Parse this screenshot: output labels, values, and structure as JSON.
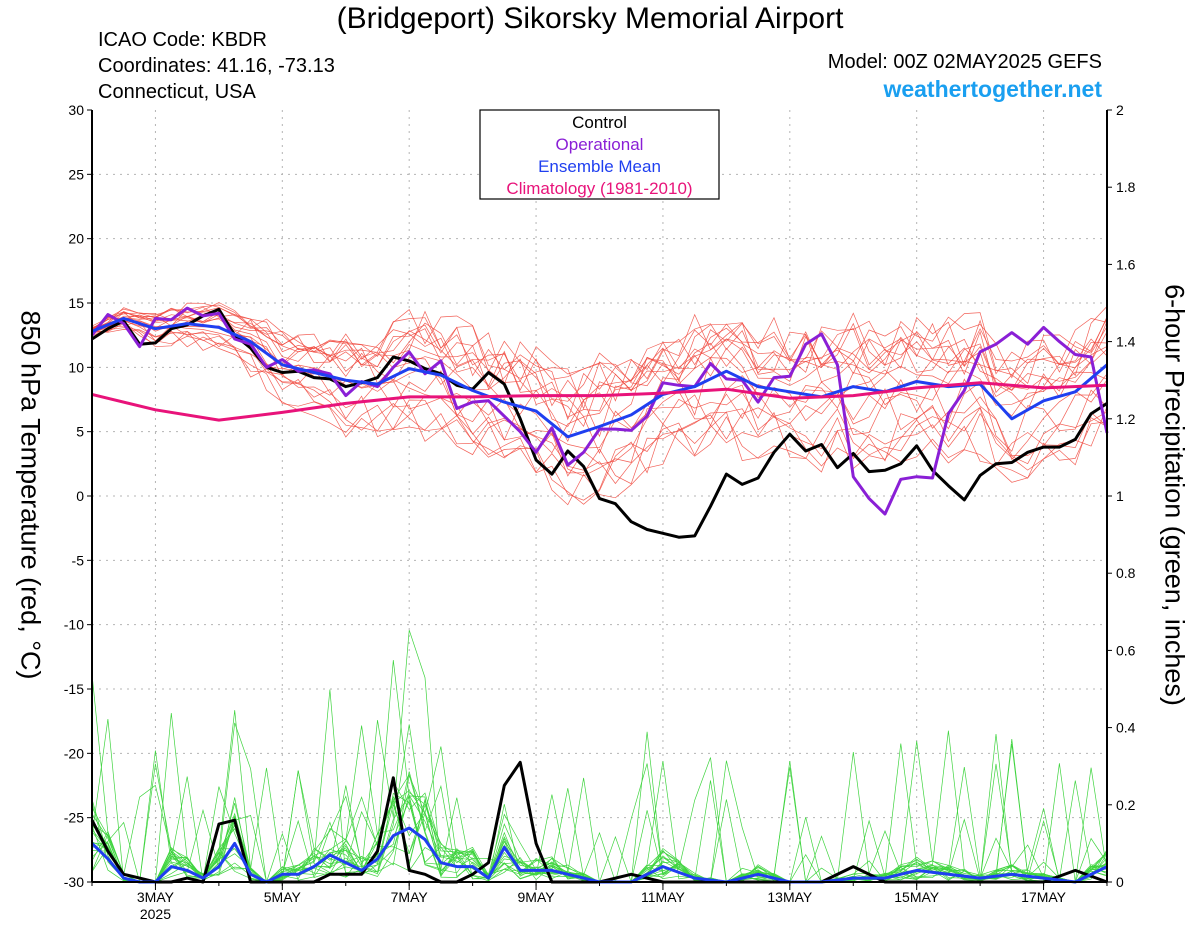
{
  "header": {
    "title": "(Bridgeport) Sikorsky Memorial Airport",
    "icao": "ICAO Code: KBDR",
    "coords": "Coordinates: 41.16, -73.13",
    "location": "Connecticut, USA",
    "model": "Model: 00Z 02MAY2025 GEFS",
    "site": "weathertogether.net"
  },
  "chart_data": {
    "type": "line",
    "ylabel": "850 hPa Temperature (red, °C)",
    "y2label": "6-hour Precipitation (green, inches)",
    "ylim": [
      -30,
      30
    ],
    "y2lim": [
      0,
      2
    ],
    "xlim": [
      2.0,
      18.0
    ],
    "x_units": "days of May 2025",
    "grid": true,
    "legend_position": "top-center",
    "y_ticks": [
      30,
      25,
      20,
      15,
      10,
      5,
      0,
      -5,
      -10,
      -15,
      -20,
      -25,
      -30
    ],
    "y_tick_labels": [
      "30",
      "25",
      "20",
      "15",
      "10",
      "5",
      "0",
      "-5",
      "-10",
      "-15",
      "-20",
      "-25",
      "-30"
    ],
    "y2_ticks": [
      2,
      1.8,
      1.6,
      1.4,
      1.2,
      1,
      0.8,
      0.6,
      0.4,
      0.2,
      0
    ],
    "y2_tick_labels": [
      "2",
      "1.8",
      "1.6",
      "1.4",
      "1.2",
      "1",
      "0.8",
      "0.6",
      "0.4",
      "0.2",
      "0"
    ],
    "x_ticks": [
      3,
      5,
      7,
      9,
      11,
      13,
      15,
      17
    ],
    "x_tick_labels": [
      "3MAY",
      "5MAY",
      "7MAY",
      "9MAY",
      "11MAY",
      "13MAY",
      "15MAY",
      "17MAY"
    ],
    "x_year_label": "2025",
    "legend": [
      {
        "label": "Control",
        "color": "#000000"
      },
      {
        "label": "Operational",
        "color": "#8a1fd6"
      },
      {
        "label": "Ensemble Mean",
        "color": "#1f3ff0"
      },
      {
        "label": "Climatology (1981-2010)",
        "color": "#e8137a"
      }
    ],
    "temperature_series": [
      {
        "name": "Control",
        "color": "#000000",
        "x": [
          2.0,
          2.25,
          2.5,
          2.75,
          3.0,
          3.25,
          3.5,
          3.75,
          4.0,
          4.25,
          4.5,
          4.75,
          5.0,
          5.25,
          5.5,
          5.75,
          6.0,
          6.25,
          6.5,
          6.75,
          7.0,
          7.25,
          7.5,
          7.75,
          8.0,
          8.25,
          8.5,
          8.75,
          9.0,
          9.25,
          9.5,
          9.75,
          10.0,
          10.25,
          10.5,
          10.75,
          11.0,
          11.25,
          11.5,
          11.75,
          12.0,
          12.25,
          12.5,
          12.75,
          13.0,
          13.25,
          13.5,
          13.75,
          14.0,
          14.25,
          14.5,
          14.75,
          15.0,
          15.25,
          15.5,
          15.75,
          16.0,
          16.25,
          16.5,
          16.75,
          17.0,
          17.25,
          17.5,
          17.75,
          18.0
        ],
        "values": [
          12.2,
          13.0,
          13.6,
          11.8,
          11.9,
          13.0,
          13.3,
          14.0,
          14.5,
          12.5,
          11.5,
          10.0,
          9.6,
          9.7,
          9.2,
          9.1,
          8.5,
          8.8,
          9.2,
          10.8,
          10.5,
          9.9,
          9.5,
          8.6,
          8.3,
          9.6,
          8.7,
          6.0,
          2.8,
          1.7,
          3.5,
          2.3,
          -0.2,
          -0.6,
          -2.0,
          -2.6,
          -2.9,
          -3.2,
          -3.1,
          -0.8,
          1.7,
          0.9,
          1.4,
          3.4,
          4.8,
          3.5,
          4.0,
          2.2,
          3.3,
          1.9,
          2.0,
          2.5,
          3.9,
          2.0,
          0.8,
          -0.3,
          1.6,
          2.5,
          2.6,
          3.4,
          3.8,
          3.8,
          4.4,
          6.4,
          7.2
        ]
      },
      {
        "name": "Operational",
        "color": "#8a1fd6",
        "x": [
          2.0,
          2.25,
          2.5,
          2.75,
          3.0,
          3.25,
          3.5,
          3.75,
          4.0,
          4.25,
          4.5,
          4.75,
          5.0,
          5.25,
          5.5,
          5.75,
          6.0,
          6.25,
          6.5,
          6.75,
          7.0,
          7.25,
          7.5,
          7.75,
          8.0,
          8.25,
          8.5,
          8.75,
          9.0,
          9.25,
          9.5,
          9.75,
          10.0,
          10.25,
          10.5,
          10.75,
          11.0,
          11.25,
          11.5,
          11.75,
          12.0,
          12.25,
          12.5,
          12.75,
          13.0,
          13.25,
          13.5,
          13.75,
          14.0,
          14.25,
          14.5,
          14.75,
          15.0,
          15.25,
          15.5,
          15.75,
          16.0,
          16.25,
          16.5,
          16.75,
          17.0,
          17.25,
          17.5,
          17.75,
          18.0
        ],
        "values": [
          12.5,
          14.1,
          13.4,
          11.6,
          13.8,
          13.7,
          14.6,
          14.0,
          14.2,
          12.2,
          11.8,
          10.0,
          10.6,
          9.7,
          9.8,
          9.5,
          7.8,
          8.9,
          8.5,
          10.0,
          11.2,
          9.5,
          10.5,
          6.8,
          7.3,
          7.4,
          6.2,
          5.0,
          3.4,
          5.3,
          2.4,
          3.4,
          5.2,
          5.2,
          5.1,
          6.2,
          8.8,
          8.6,
          8.5,
          10.3,
          9.1,
          9.0,
          7.3,
          9.2,
          9.3,
          11.8,
          12.6,
          10.2,
          1.5,
          -0.2,
          -1.4,
          1.3,
          1.5,
          1.4,
          6.4,
          8.2,
          11.2,
          11.8,
          12.7,
          11.8,
          13.1,
          12.0,
          11.0,
          10.8,
          4.9
        ]
      },
      {
        "name": "Ensemble Mean",
        "color": "#1f3ff0",
        "x": [
          2.0,
          2.5,
          3.0,
          3.5,
          4.0,
          4.5,
          5.0,
          5.5,
          6.0,
          6.5,
          7.0,
          7.5,
          8.0,
          8.5,
          9.0,
          9.5,
          10.0,
          10.5,
          11.0,
          11.5,
          12.0,
          12.5,
          13.0,
          13.5,
          14.0,
          14.5,
          15.0,
          15.5,
          16.0,
          16.5,
          17.0,
          17.5,
          18.0
        ],
        "values": [
          12.8,
          13.8,
          13.0,
          13.4,
          13.1,
          12.0,
          10.2,
          9.6,
          9.0,
          8.7,
          9.9,
          9.4,
          8.2,
          7.3,
          6.6,
          4.6,
          5.4,
          6.3,
          7.9,
          8.5,
          9.7,
          8.5,
          8.1,
          7.7,
          8.5,
          8.1,
          8.9,
          8.5,
          8.7,
          6.0,
          7.4,
          8.1,
          10.2
        ]
      },
      {
        "name": "Climatology (1981-2010)",
        "color": "#e8137a",
        "x": [
          2.0,
          3.0,
          4.0,
          5.0,
          6.0,
          7.0,
          8.0,
          9.0,
          10.0,
          11.0,
          12.0,
          13.0,
          14.0,
          15.0,
          16.0,
          17.0,
          18.0
        ],
        "values": [
          7.9,
          6.7,
          5.9,
          6.5,
          7.2,
          7.7,
          7.7,
          7.8,
          7.8,
          8.0,
          8.3,
          7.6,
          7.8,
          8.4,
          8.8,
          8.4,
          8.6
        ]
      }
    ],
    "temperature_members": {
      "color": "#f0453b",
      "count": 20,
      "note_x_start": 2.0,
      "values_spread_around_mean": true
    },
    "precipitation_series": [
      {
        "name": "Control",
        "color": "#000000",
        "x": [
          2.0,
          2.25,
          2.5,
          2.75,
          3.0,
          3.25,
          3.5,
          3.75,
          4.0,
          4.25,
          4.5,
          4.75,
          5.0,
          5.25,
          5.5,
          5.75,
          6.0,
          6.25,
          6.5,
          6.75,
          7.0,
          7.25,
          7.5,
          7.75,
          8.0,
          8.25,
          8.5,
          8.75,
          9.0,
          9.25,
          9.5,
          10.0,
          10.5,
          11.0,
          11.5,
          12.0,
          12.5,
          13.0,
          13.5,
          14.0,
          14.5,
          15.0,
          15.5,
          16.0,
          16.5,
          17.0,
          17.5,
          18.0
        ],
        "values": [
          0.16,
          0.08,
          0.02,
          0.01,
          0.0,
          0.0,
          0.01,
          0.0,
          0.15,
          0.16,
          0.0,
          0.0,
          0.0,
          0.0,
          0.0,
          0.02,
          0.02,
          0.02,
          0.08,
          0.27,
          0.03,
          0.02,
          0.0,
          0.0,
          0.02,
          0.05,
          0.25,
          0.31,
          0.1,
          0.0,
          0.0,
          0.0,
          0.02,
          0.0,
          0.0,
          0.0,
          0.0,
          0.0,
          0.0,
          0.04,
          0.0,
          0.0,
          0.0,
          0.0,
          0.0,
          0.0,
          0.03,
          0.0
        ]
      },
      {
        "name": "Ensemble Mean",
        "color": "#1f3ff0",
        "x": [
          2.0,
          2.25,
          2.5,
          2.75,
          3.0,
          3.25,
          3.5,
          3.75,
          4.0,
          4.25,
          4.5,
          4.75,
          5.0,
          5.25,
          5.5,
          5.75,
          6.0,
          6.25,
          6.5,
          6.75,
          7.0,
          7.25,
          7.5,
          7.75,
          8.0,
          8.25,
          8.5,
          8.75,
          9.0,
          9.25,
          9.5,
          9.75,
          10.0,
          10.5,
          11.0,
          11.5,
          12.0,
          12.5,
          13.0,
          13.5,
          14.0,
          14.5,
          15.0,
          15.5,
          16.0,
          16.5,
          17.0,
          17.5,
          18.0
        ],
        "values": [
          0.1,
          0.06,
          0.01,
          0.0,
          0.0,
          0.04,
          0.03,
          0.01,
          0.04,
          0.1,
          0.02,
          0.0,
          0.02,
          0.02,
          0.04,
          0.07,
          0.05,
          0.03,
          0.06,
          0.12,
          0.14,
          0.11,
          0.05,
          0.04,
          0.04,
          0.01,
          0.09,
          0.03,
          0.03,
          0.03,
          0.02,
          0.01,
          0.0,
          0.0,
          0.04,
          0.01,
          0.0,
          0.02,
          0.0,
          0.0,
          0.01,
          0.01,
          0.03,
          0.02,
          0.01,
          0.02,
          0.01,
          0.0,
          0.04
        ]
      }
    ],
    "precipitation_members": {
      "color": "#3fd43f",
      "count": 20
    }
  }
}
